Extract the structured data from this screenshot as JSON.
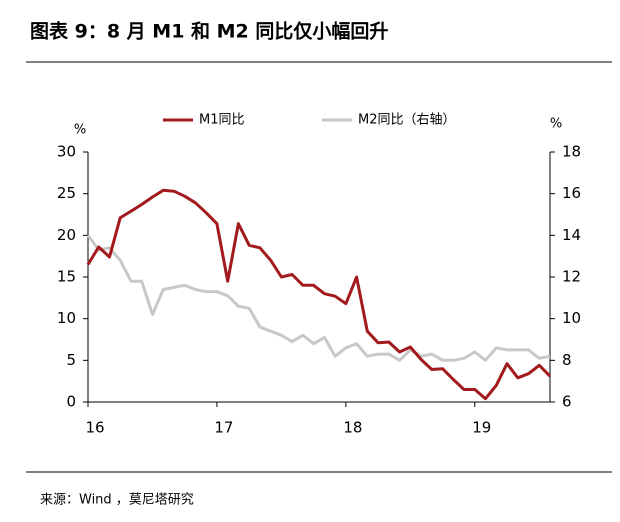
{
  "chart_data": {
    "type": "line",
    "title": "图表 9：8 月 M1 和 M2 同比仅小幅回升",
    "source": "来源：Wind ，莫尼塔研究",
    "y_unit": "%",
    "y2_unit": "%",
    "categories": [
      "16",
      null,
      null,
      null,
      null,
      null,
      null,
      null,
      null,
      null,
      null,
      null,
      "17",
      null,
      null,
      null,
      null,
      null,
      null,
      null,
      null,
      null,
      null,
      null,
      "18",
      null,
      null,
      null,
      null,
      null,
      null,
      null,
      null,
      null,
      null,
      null,
      "19",
      null,
      null,
      null,
      null,
      null,
      null,
      null
    ],
    "series": [
      {
        "name": "M1同比",
        "color": "#a31a1c",
        "values": [
          16.5,
          18.6,
          17.4,
          22.1,
          22.9,
          23.7,
          24.6,
          25.4,
          25.3,
          24.7,
          23.9,
          22.7,
          21.4,
          14.5,
          21.4,
          18.8,
          18.5,
          17.0,
          15.0,
          15.3,
          14.0,
          14.0,
          13.0,
          12.7,
          11.8,
          15.0,
          8.5,
          7.1,
          7.2,
          6.0,
          6.6,
          5.1,
          3.9,
          4.0,
          2.7,
          1.5,
          1.5,
          0.4,
          2.0,
          4.6,
          2.9,
          3.4,
          4.4,
          3.1
        ]
      },
      {
        "name": "M2同比（右轴）",
        "color": "#c8c8c8",
        "axis": "y2",
        "values": [
          14.0,
          13.3,
          13.4,
          12.8,
          11.8,
          11.8,
          10.2,
          11.4,
          11.5,
          11.6,
          11.4,
          11.3,
          11.3,
          11.1,
          10.6,
          10.5,
          9.6,
          9.4,
          9.2,
          8.9,
          9.2,
          8.8,
          9.1,
          8.2,
          8.6,
          8.8,
          8.2,
          8.3,
          8.3,
          8.0,
          8.5,
          8.2,
          8.3,
          8.0,
          8.0,
          8.1,
          8.4,
          8.0,
          8.6,
          8.5,
          8.5,
          8.5,
          8.1,
          8.2
        ]
      }
    ],
    "ylim": [
      0,
      30
    ],
    "yticks": [
      0,
      5,
      10,
      15,
      20,
      25,
      30
    ],
    "y2lim": [
      6,
      18
    ],
    "y2ticks": [
      6,
      8,
      10,
      12,
      14,
      16,
      18
    ]
  }
}
